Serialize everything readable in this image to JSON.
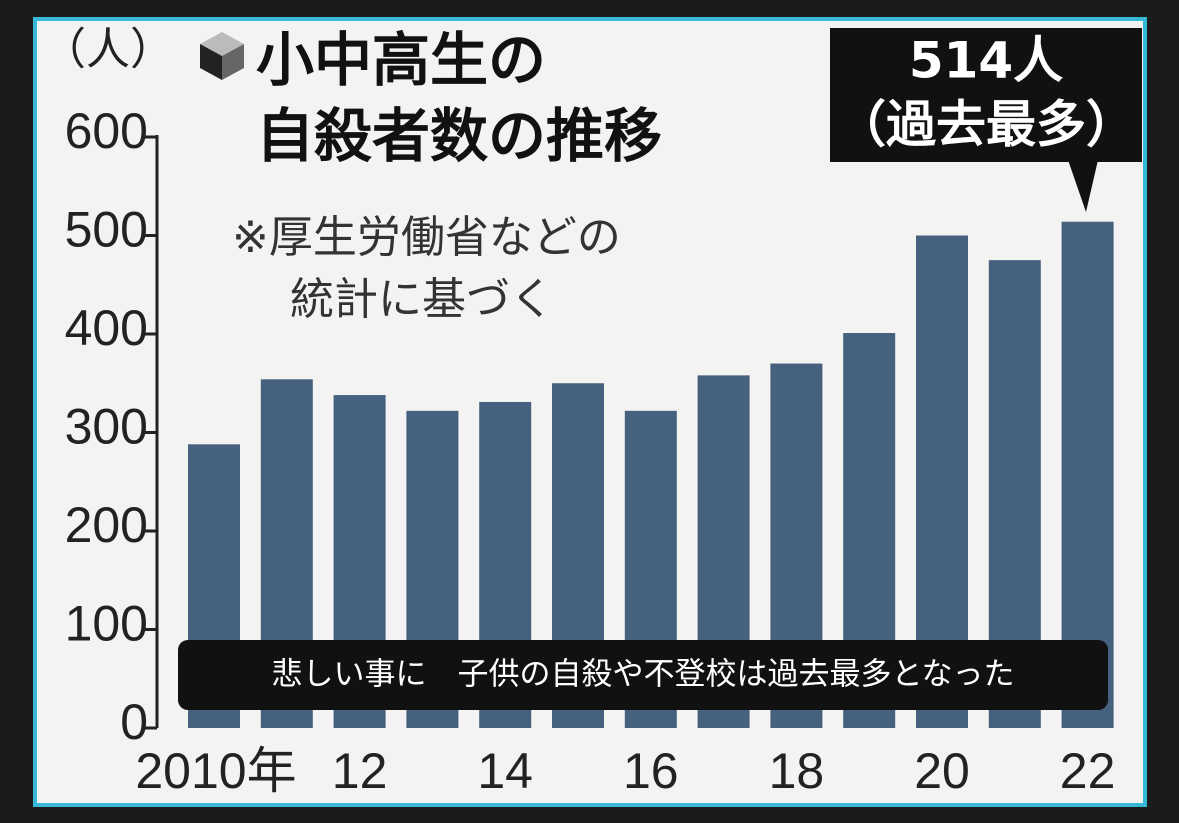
{
  "chart_data": {
    "type": "bar",
    "title": [
      "小中高生の",
      "自殺者数の推移"
    ],
    "y_label": "（人）",
    "note": [
      "※厚生労働省などの",
      "統計に基づく"
    ],
    "annotation": [
      "514人",
      "（過去最多）"
    ],
    "caption": "悲しい事に　子供の自殺や不登校は過去最多となった",
    "categories": [
      "2010年",
      null,
      "12",
      null,
      "14",
      null,
      "16",
      null,
      "18",
      null,
      "20",
      null,
      "22"
    ],
    "values": [
      288,
      354,
      338,
      322,
      331,
      350,
      322,
      358,
      370,
      401,
      500,
      475,
      514
    ],
    "color": "#46607f",
    "ylim": [
      0,
      600
    ],
    "yticks": [
      0,
      100,
      200,
      300,
      400,
      500,
      600
    ]
  }
}
